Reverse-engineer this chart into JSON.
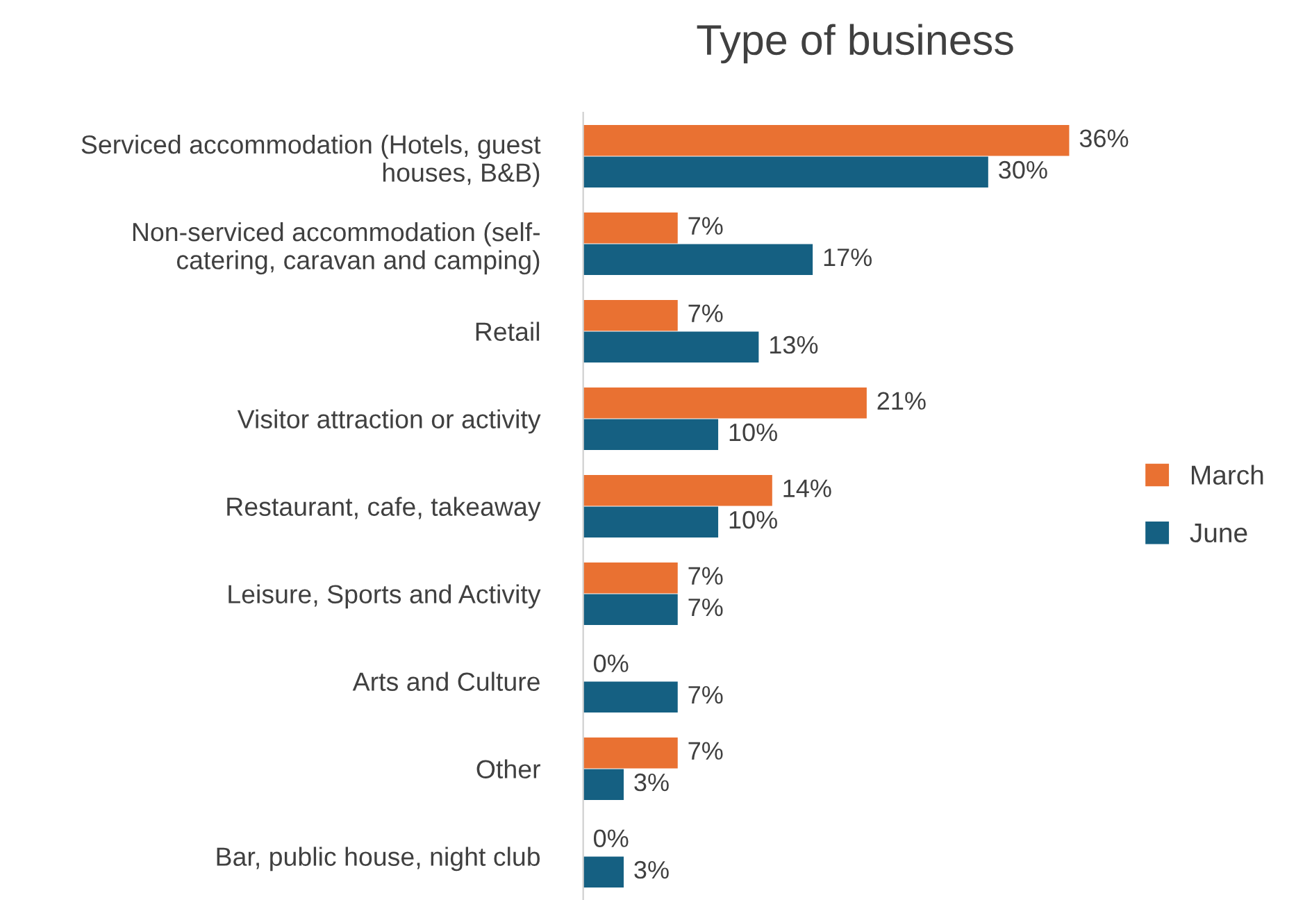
{
  "chart_data": {
    "type": "bar",
    "orientation": "horizontal",
    "title": "Type of business",
    "categories": [
      "Serviced accommodation (Hotels, guest\nhouses, B&B)",
      "Non-serviced accommodation (self-\ncatering, caravan and camping)",
      "Retail",
      "Visitor attraction or activity",
      "Restaurant, cafe, takeaway",
      "Leisure, Sports and Activity",
      "Arts and Culture",
      "Other",
      "Bar, public house, night club"
    ],
    "series": [
      {
        "name": "March",
        "color": "#e97132",
        "values": [
          36,
          7,
          7,
          21,
          14,
          7,
          0,
          7,
          0
        ],
        "value_labels": [
          "36%",
          "7%",
          "7%",
          "21%",
          "14%",
          "7%",
          "0%",
          "7%",
          "0%"
        ]
      },
      {
        "name": "June",
        "color": "#156082",
        "values": [
          30,
          17,
          13,
          10,
          10,
          7,
          7,
          3,
          3
        ],
        "value_labels": [
          "30%",
          "17%",
          "13%",
          "10%",
          "10%",
          "7%",
          "7%",
          "3%",
          "3%"
        ]
      }
    ],
    "legend": "right",
    "grid": false
  }
}
